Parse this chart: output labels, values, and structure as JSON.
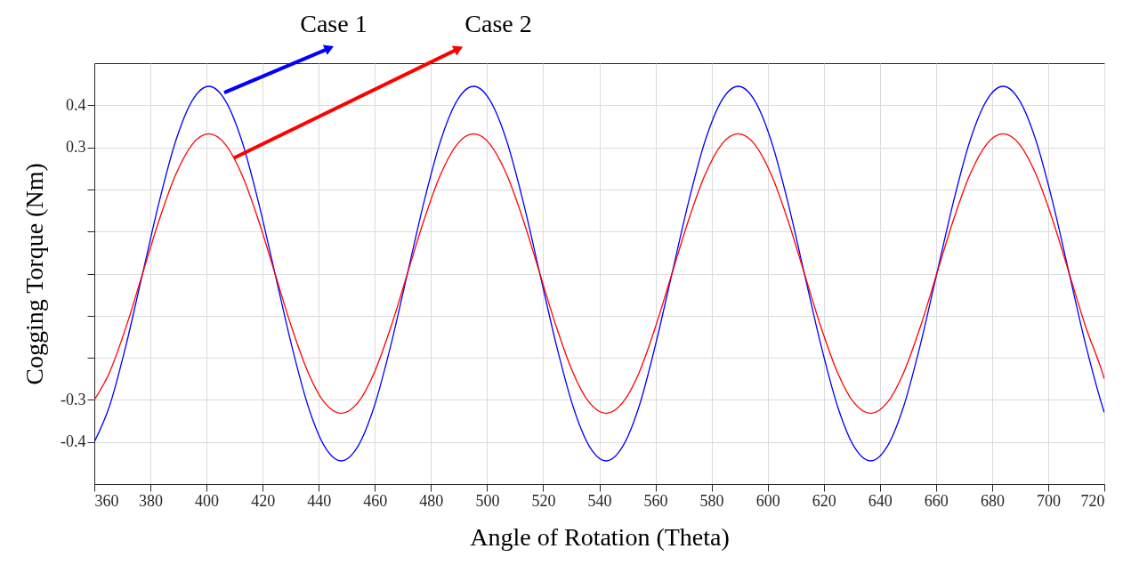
{
  "chart_data": {
    "type": "line",
    "xlabel": "Angle of Rotation (Theta)",
    "ylabel": "Cogging Torque (Nm)",
    "xlim": [
      360,
      720
    ],
    "xticks": [
      360,
      380,
      400,
      420,
      440,
      460,
      480,
      500,
      520,
      540,
      560,
      580,
      600,
      620,
      640,
      660,
      680,
      700,
      720
    ],
    "ylim": [
      -0.5,
      0.5
    ],
    "yticks": [
      {
        "value": -0.4,
        "label": "-0.4"
      },
      {
        "value": -0.3,
        "label": "-0.3"
      },
      {
        "value": -0.2,
        "label": null
      },
      {
        "value": -0.1,
        "label": null
      },
      {
        "value": 0,
        "label": null
      },
      {
        "value": 0.1,
        "label": null
      },
      {
        "value": 0.2,
        "label": null
      },
      {
        "value": 0.3,
        "label": "0.3"
      },
      {
        "value": 0.4,
        "label": "0.4"
      }
    ],
    "grid": true,
    "line_style": "solid",
    "x": [
      360,
      365.4,
      371.3,
      377.2,
      383.1,
      389.0,
      394.9,
      400.8,
      406.7,
      412.6,
      418.5,
      424.4,
      430.3,
      436.2,
      442.1,
      448.0,
      453.9,
      459.8,
      465.7,
      471.6,
      477.5,
      483.4,
      489.3,
      495.2,
      501.1,
      507.0,
      512.9,
      518.8,
      524.7,
      530.6,
      536.5,
      542.4,
      548.3,
      554.2,
      560.0,
      565.9,
      571.8,
      577.7,
      583.6,
      589.5,
      595.4,
      601.3,
      607.2,
      613.1,
      619.0,
      624.9,
      630.8,
      636.7,
      642.6,
      648.5,
      654.4,
      660.3,
      666.2,
      672.1,
      678.0,
      683.9,
      689.8,
      695.7,
      701.6,
      707.5,
      713.4,
      719.3,
      720
    ],
    "series": [
      {
        "color": "#0000ff",
        "values": [
          -0.4,
          -0.315,
          -0.17,
          0,
          0.17,
          0.315,
          0.411,
          0.445,
          0.411,
          0.315,
          0.17,
          0,
          -0.17,
          -0.315,
          -0.411,
          -0.445,
          -0.411,
          -0.315,
          -0.17,
          0,
          0.17,
          0.315,
          0.411,
          0.445,
          0.411,
          0.315,
          0.17,
          0,
          -0.17,
          -0.315,
          -0.411,
          -0.445,
          -0.411,
          -0.315,
          -0.17,
          0,
          0.17,
          0.315,
          0.411,
          0.445,
          0.411,
          0.315,
          0.17,
          0,
          -0.17,
          -0.315,
          -0.411,
          -0.445,
          -0.411,
          -0.315,
          -0.17,
          0,
          0.17,
          0.315,
          0.411,
          0.445,
          0.411,
          0.315,
          0.17,
          0,
          -0.17,
          -0.315,
          -0.33
        ]
      },
      {
        "color": "#ff0000",
        "values": [
          -0.3,
          -0.235,
          -0.127,
          0,
          0.127,
          0.235,
          0.307,
          0.332,
          0.307,
          0.235,
          0.127,
          0,
          -0.127,
          -0.235,
          -0.307,
          -0.332,
          -0.307,
          -0.235,
          -0.127,
          0,
          0.127,
          0.235,
          0.307,
          0.332,
          0.307,
          0.235,
          0.127,
          0,
          -0.127,
          -0.235,
          -0.307,
          -0.332,
          -0.307,
          -0.235,
          -0.127,
          0,
          0.127,
          0.235,
          0.307,
          0.332,
          0.307,
          0.235,
          0.127,
          0,
          -0.127,
          -0.235,
          -0.307,
          -0.332,
          -0.307,
          -0.235,
          -0.127,
          0,
          0.127,
          0.235,
          0.307,
          0.332,
          0.307,
          0.235,
          0.127,
          0,
          -0.127,
          -0.235,
          -0.25
        ]
      }
    ],
    "annotations": [
      {
        "text": "Case 1",
        "x": 406.3,
        "y": 0.43
      },
      {
        "text": "Case 2",
        "x": 409.8,
        "y": 0.275
      }
    ]
  }
}
